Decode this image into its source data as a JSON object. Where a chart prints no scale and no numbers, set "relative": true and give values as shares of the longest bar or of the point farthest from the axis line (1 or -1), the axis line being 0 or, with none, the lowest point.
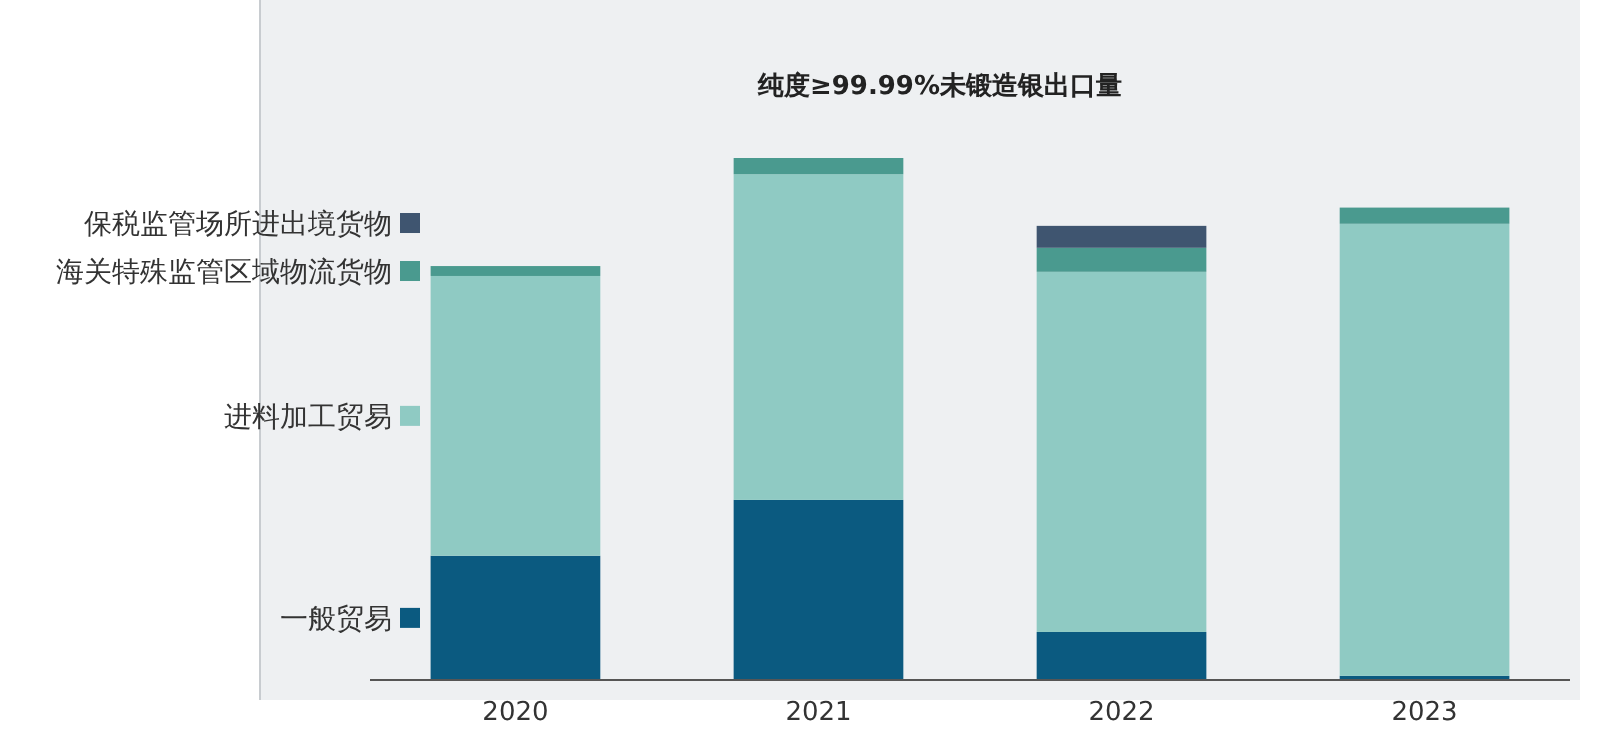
{
  "chart_data": {
    "type": "bar",
    "title": "纯度≥99.99%未锻造银出口量",
    "categories": [
      "2020",
      "2021",
      "2022",
      "2023"
    ],
    "stacked": true,
    "relative": true,
    "legend": "left",
    "series": [
      {
        "name": "一般贸易",
        "color": "#0b5a80",
        "values": [
          0.238,
          0.345,
          0.092,
          0.008
        ]
      },
      {
        "name": "进料加工贸易",
        "color": "#8fcac3",
        "values": [
          0.536,
          0.624,
          0.69,
          0.866
        ]
      },
      {
        "name": "海关特殊监管区域物流货物",
        "color": "#4a9a8f",
        "values": [
          0.019,
          0.031,
          0.046,
          0.031
        ]
      },
      {
        "name": "保税监管场所进出境货物",
        "color": "#3f5570",
        "values": [
          null,
          null,
          0.042,
          null
        ]
      }
    ]
  }
}
